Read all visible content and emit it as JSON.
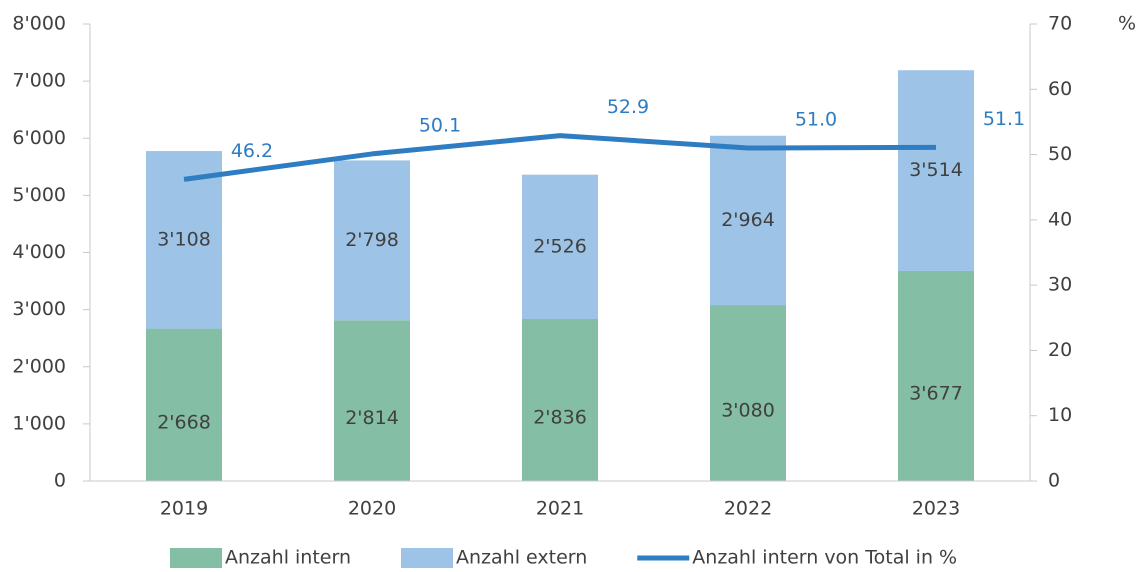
{
  "chart_data": {
    "type": "bar",
    "categories": [
      "2019",
      "2020",
      "2021",
      "2022",
      "2023"
    ],
    "series": [
      {
        "name": "Anzahl intern",
        "color": "#84bea4",
        "values": [
          2668,
          2814,
          2836,
          3080,
          3677
        ],
        "value_labels": [
          "2'668",
          "2'814",
          "2'836",
          "3'080",
          "3'677"
        ]
      },
      {
        "name": "Anzahl extern",
        "color": "#9dc3e6",
        "values": [
          3108,
          2798,
          2526,
          2964,
          3514
        ],
        "value_labels": [
          "3'108",
          "2'798",
          "2'526",
          "2'964",
          "3'514"
        ]
      },
      {
        "name": "Anzahl intern von Total in %",
        "type": "line",
        "axis": "y2",
        "color": "#2e7dc2",
        "values": [
          46.2,
          50.1,
          52.9,
          51,
          51.1
        ],
        "value_labels": [
          "46.2",
          "50.1",
          "52.9",
          "51.0",
          "51.1"
        ]
      }
    ],
    "stacked": true,
    "ylim": [
      0,
      8000
    ],
    "yticks": [
      {
        "value": 0,
        "label": "0"
      },
      {
        "value": 1000,
        "label": "1'000"
      },
      {
        "value": 2000,
        "label": "2'000"
      },
      {
        "value": 3000,
        "label": "3'000"
      },
      {
        "value": 4000,
        "label": "4'000"
      },
      {
        "value": 5000,
        "label": "5'000"
      },
      {
        "value": 6000,
        "label": "6'000"
      },
      {
        "value": 7000,
        "label": "7'000"
      },
      {
        "value": 8000,
        "label": "8'000"
      }
    ],
    "y2lim": [
      0,
      70
    ],
    "y2ticks": [
      0,
      10,
      20,
      30,
      40,
      50,
      60,
      70
    ],
    "y2label": "%",
    "legend": "bottom"
  }
}
